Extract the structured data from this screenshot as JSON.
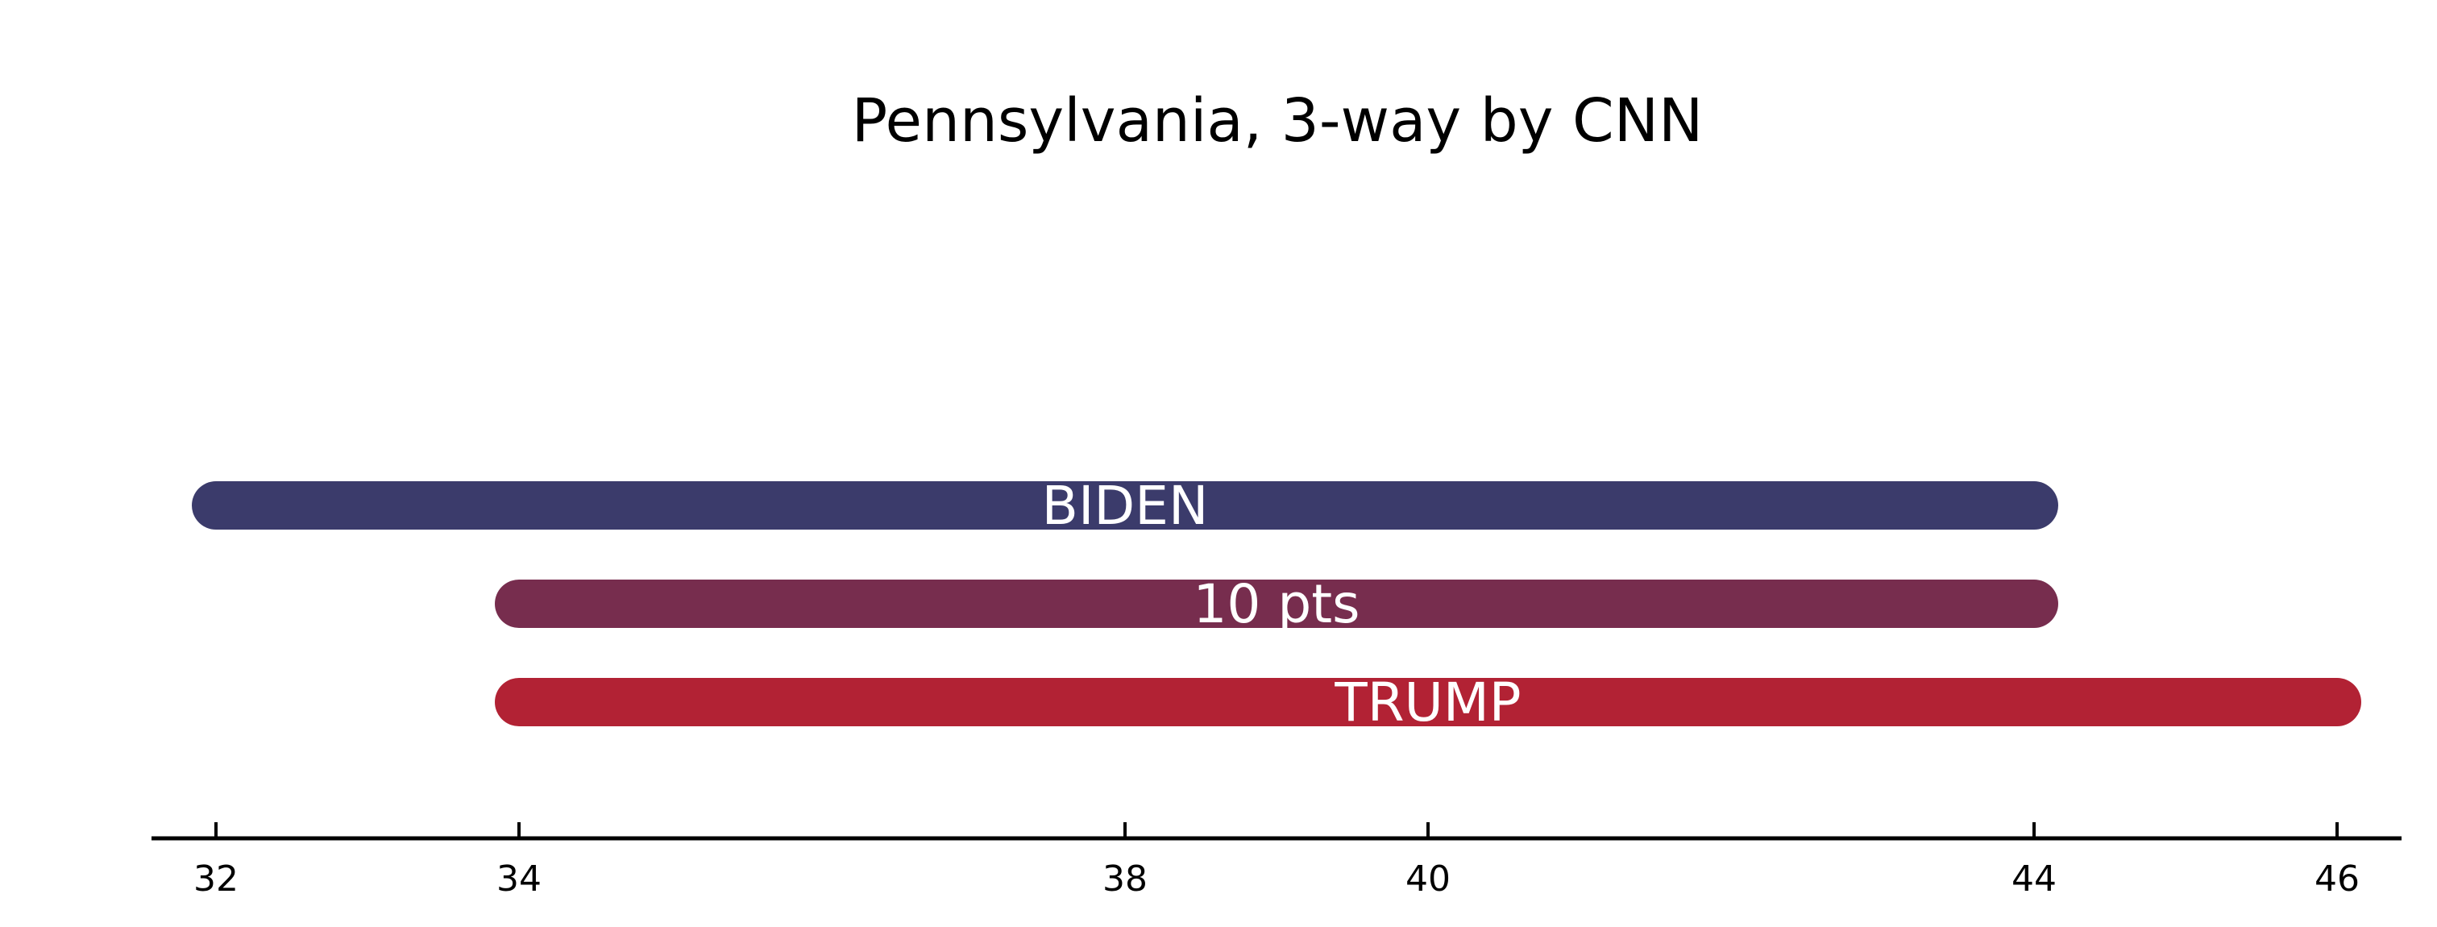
{
  "chart_data": {
    "type": "bar",
    "orientation": "horizontal-range",
    "title": "Pennsylvania, 3-way by CNN",
    "xlabel": "",
    "ylabel": "",
    "xlim": [
      31.8,
      46.2
    ],
    "xticks": [
      32,
      34,
      38,
      40,
      44,
      46
    ],
    "grid": false,
    "legend": "none",
    "bars": [
      {
        "label": "BIDEN",
        "start": 32,
        "end": 44,
        "color": "#3b3b6b"
      },
      {
        "label": "10 pts",
        "start": 34,
        "end": 44,
        "color": "#772d4e"
      },
      {
        "label": "TRUMP",
        "start": 34,
        "end": 46,
        "color": "#b22234"
      }
    ]
  }
}
